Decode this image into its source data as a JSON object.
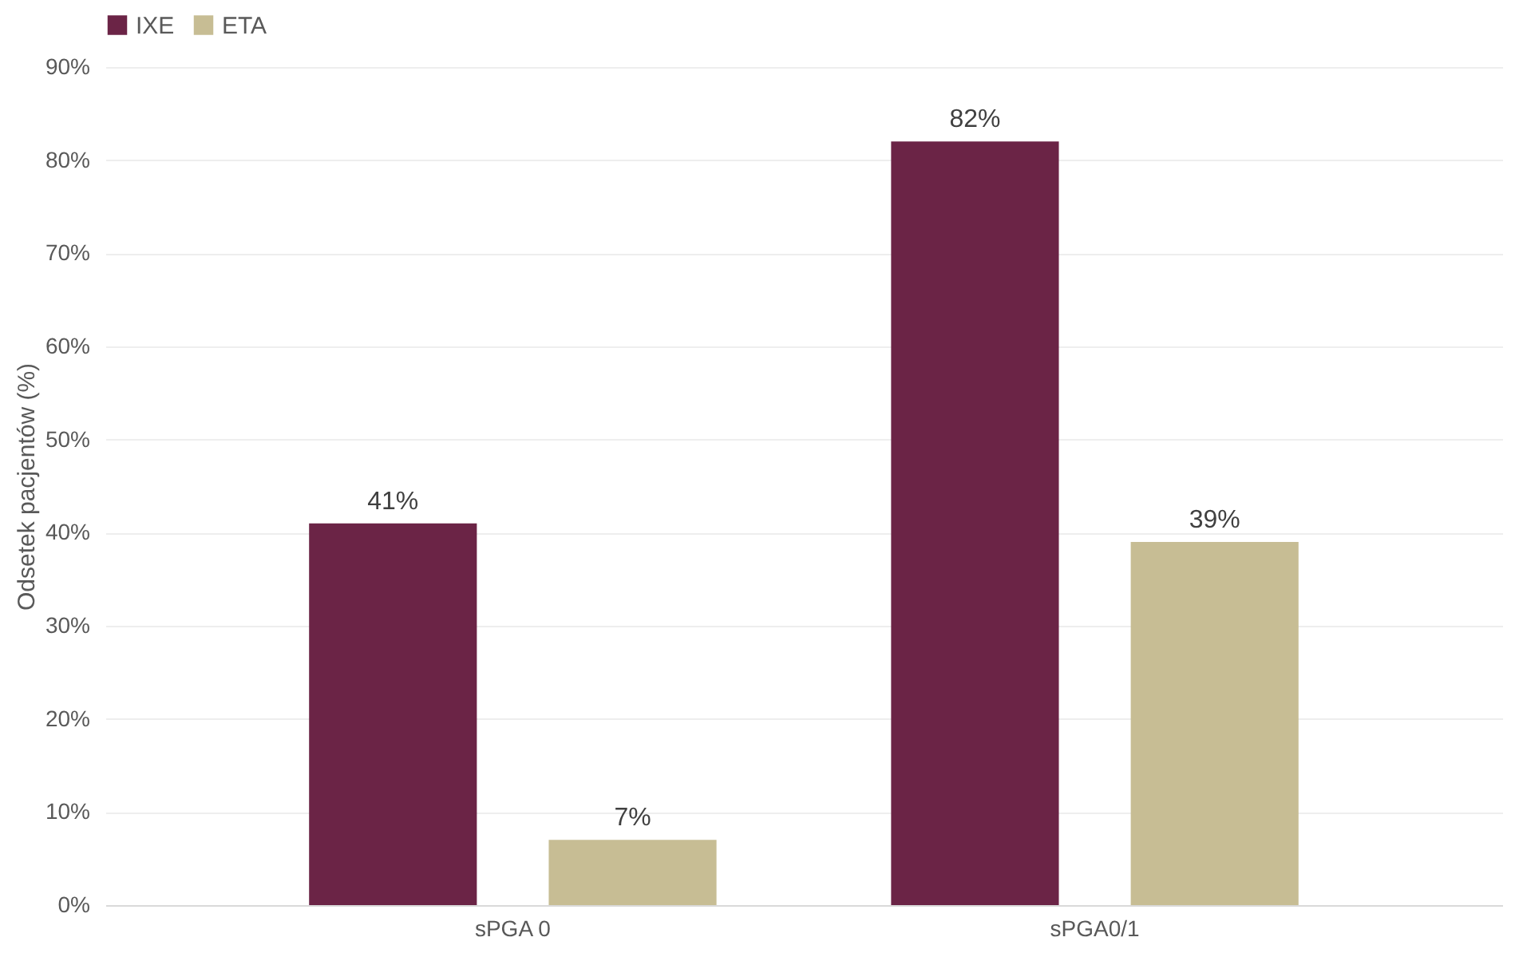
{
  "chart_data": {
    "type": "bar",
    "ylabel": "Odsetek pacjentów (%)",
    "categories": [
      "sPGA 0",
      "sPGA0/1"
    ],
    "series": [
      {
        "name": "IXE",
        "color": "#6b2446",
        "values": [
          41,
          82
        ]
      },
      {
        "name": "ETA",
        "color": "#c7bd94",
        "values": [
          7,
          39
        ]
      }
    ],
    "ylim": [
      0,
      90
    ],
    "yticks": [
      {
        "value": 0,
        "label": "0%"
      },
      {
        "value": 10,
        "label": "10%"
      },
      {
        "value": 20,
        "label": "20%"
      },
      {
        "value": 30,
        "label": "30%"
      },
      {
        "value": 40,
        "label": "40%"
      },
      {
        "value": 50,
        "label": "50%"
      },
      {
        "value": 60,
        "label": "60%"
      },
      {
        "value": 70,
        "label": "70%"
      },
      {
        "value": 80,
        "label": "80%"
      },
      {
        "value": 90,
        "label": "90%"
      }
    ],
    "value_labels": [
      [
        "41%",
        "82%"
      ],
      [
        "7%",
        "39%"
      ]
    ],
    "grid": "y",
    "legend": "top"
  }
}
